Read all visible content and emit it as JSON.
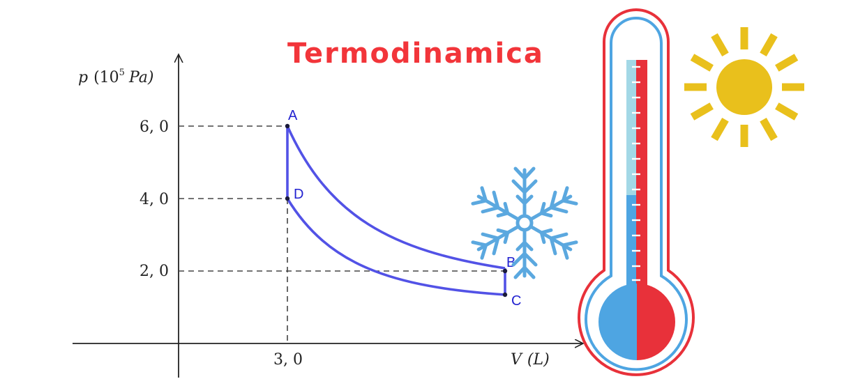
{
  "title": "Termodinamica",
  "axes": {
    "y_label_p": "p",
    "y_label_unit_open": "(10",
    "y_label_exp": "5",
    "y_label_unit": "Pa)",
    "x_label_v": "V",
    "x_label_unit": "(L)",
    "y_ticks": [
      "6, 0",
      "4, 0",
      "2, 0"
    ],
    "x_ticks": [
      "3, 0"
    ]
  },
  "points": [
    {
      "label": "A",
      "V": 3.0,
      "p": 6.0
    },
    {
      "label": "B",
      "V": 9.0,
      "p": 2.0
    },
    {
      "label": "C",
      "V": 9.0,
      "p": 1.33
    },
    {
      "label": "D",
      "V": 3.0,
      "p": 4.0
    }
  ],
  "colors": {
    "cycle": "#5252e6",
    "title": "#f2353a",
    "snowflake": "#5ba8df",
    "sun": "#e9c01c",
    "thermo_red": "#e8313a",
    "thermo_blue": "#4ea5e2",
    "thermo_light": "#a3d8e6"
  },
  "icons": [
    "snowflake-icon",
    "thermometer-icon",
    "sun-icon"
  ]
}
